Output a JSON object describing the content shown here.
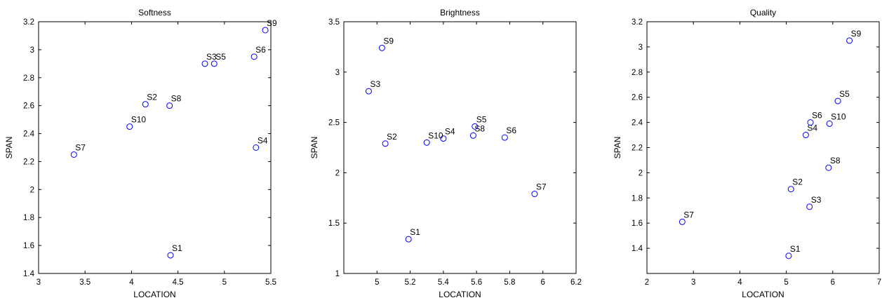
{
  "chart_data": [
    {
      "type": "scatter",
      "title": "Softness",
      "xlabel": "LOCATION",
      "ylabel": "SPAN",
      "xlim": [
        3,
        5.5
      ],
      "ylim": [
        1.4,
        3.2
      ],
      "xticks": [
        3,
        3.5,
        4,
        4.5,
        5,
        5.5
      ],
      "xtick_labels": [
        "3",
        "3.5",
        "4",
        "4.5",
        "5",
        "5.5"
      ],
      "yticks": [
        1.4,
        1.6,
        1.8,
        2.0,
        2.2,
        2.4,
        2.6,
        2.8,
        3.0,
        3.2
      ],
      "ytick_labels": [
        "1.4",
        "1.6",
        "1.8",
        "2",
        "2.2",
        "2.4",
        "2.6",
        "2.8",
        "3",
        "3.2"
      ],
      "grid": false,
      "marker_color": "#0000ff",
      "points": [
        {
          "label": "S1",
          "x": 4.42,
          "y": 1.53
        },
        {
          "label": "S2",
          "x": 4.15,
          "y": 2.61
        },
        {
          "label": "S3",
          "x": 4.79,
          "y": 2.9
        },
        {
          "label": "S4",
          "x": 5.34,
          "y": 2.3
        },
        {
          "label": "S5",
          "x": 4.89,
          "y": 2.9
        },
        {
          "label": "S6",
          "x": 5.32,
          "y": 2.95
        },
        {
          "label": "S7",
          "x": 3.38,
          "y": 2.25
        },
        {
          "label": "S8",
          "x": 4.41,
          "y": 2.6
        },
        {
          "label": "S9",
          "x": 5.44,
          "y": 3.14
        },
        {
          "label": "S10",
          "x": 3.98,
          "y": 2.45
        }
      ]
    },
    {
      "type": "scatter",
      "title": "Brightness",
      "xlabel": "LOCATION",
      "ylabel": "SPAN",
      "xlim": [
        4.8,
        6.2
      ],
      "ylim": [
        1,
        3.5
      ],
      "xticks": [
        5,
        5.2,
        5.4,
        5.6,
        5.8,
        6,
        6.2
      ],
      "xtick_labels": [
        "5",
        "5.2",
        "5.4",
        "5.6",
        "5.8",
        "6",
        "6.2"
      ],
      "yticks": [
        1,
        1.5,
        2,
        2.5,
        3,
        3.5
      ],
      "ytick_labels": [
        "1",
        "1.5",
        "2",
        "2.5",
        "3",
        "3.5"
      ],
      "grid": false,
      "marker_color": "#0000ff",
      "points": [
        {
          "label": "S1",
          "x": 5.19,
          "y": 1.34
        },
        {
          "label": "S2",
          "x": 5.05,
          "y": 2.29
        },
        {
          "label": "S3",
          "x": 4.95,
          "y": 2.81
        },
        {
          "label": "S4",
          "x": 5.4,
          "y": 2.34
        },
        {
          "label": "S5",
          "x": 5.59,
          "y": 2.46
        },
        {
          "label": "S6",
          "x": 5.77,
          "y": 2.35
        },
        {
          "label": "S7",
          "x": 5.95,
          "y": 1.79
        },
        {
          "label": "S8",
          "x": 5.58,
          "y": 2.37
        },
        {
          "label": "S9",
          "x": 5.03,
          "y": 3.24
        },
        {
          "label": "S10",
          "x": 5.3,
          "y": 2.3
        }
      ]
    },
    {
      "type": "scatter",
      "title": "Quality",
      "xlabel": "LOCATION",
      "ylabel": "SPAN",
      "xlim": [
        2,
        7
      ],
      "ylim": [
        1.2,
        3.2
      ],
      "xticks": [
        2,
        3,
        4,
        5,
        6,
        7
      ],
      "xtick_labels": [
        "2",
        "3",
        "4",
        "5",
        "6",
        "7"
      ],
      "yticks": [
        1.4,
        1.6,
        1.8,
        2.0,
        2.2,
        2.4,
        2.6,
        2.8,
        3.0,
        3.2
      ],
      "ytick_labels": [
        "1.4",
        "1.6",
        "1.8",
        "2",
        "2.2",
        "2.4",
        "2.6",
        "2.8",
        "3",
        "3.2"
      ],
      "grid": false,
      "marker_color": "#0000ff",
      "points": [
        {
          "label": "S1",
          "x": 5.05,
          "y": 1.34
        },
        {
          "label": "S2",
          "x": 5.1,
          "y": 1.87
        },
        {
          "label": "S3",
          "x": 5.5,
          "y": 1.73
        },
        {
          "label": "S4",
          "x": 5.42,
          "y": 2.3
        },
        {
          "label": "S5",
          "x": 6.11,
          "y": 2.57
        },
        {
          "label": "S6",
          "x": 5.52,
          "y": 2.4
        },
        {
          "label": "S7",
          "x": 2.76,
          "y": 1.61
        },
        {
          "label": "S8",
          "x": 5.91,
          "y": 2.04
        },
        {
          "label": "S9",
          "x": 6.36,
          "y": 3.05
        },
        {
          "label": "S10",
          "x": 5.93,
          "y": 2.39
        }
      ]
    }
  ]
}
